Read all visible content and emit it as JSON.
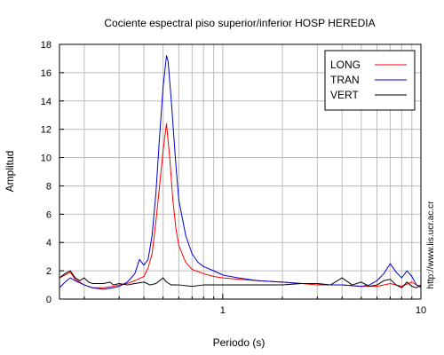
{
  "chart_data": {
    "type": "line",
    "title": "Cociente espectral piso superior/inferior  HOSP HEREDIA",
    "xlabel": "Periodo (s)",
    "ylabel": "Amplitud",
    "x_scale": "log",
    "xlim": [
      0.15,
      10
    ],
    "ylim": [
      0,
      18
    ],
    "x_ticks": [
      {
        "value": 1,
        "label": "1"
      },
      {
        "value": 10,
        "label": "10"
      }
    ],
    "y_ticks": [
      0,
      2,
      4,
      6,
      8,
      10,
      12,
      14,
      16,
      18
    ],
    "grid": true,
    "legend_position": "top-right",
    "side_note": "http://www.lis.ucr.ac.cr",
    "series": [
      {
        "name": "LONG",
        "color": "#ff0000",
        "points": [
          [
            0.15,
            1.5
          ],
          [
            0.16,
            1.7
          ],
          [
            0.17,
            1.9
          ],
          [
            0.18,
            1.4
          ],
          [
            0.2,
            1.0
          ],
          [
            0.22,
            0.8
          ],
          [
            0.25,
            0.8
          ],
          [
            0.28,
            0.9
          ],
          [
            0.3,
            1.0
          ],
          [
            0.33,
            1.1
          ],
          [
            0.36,
            1.3
          ],
          [
            0.4,
            1.6
          ],
          [
            0.42,
            2.2
          ],
          [
            0.44,
            3.2
          ],
          [
            0.46,
            5.5
          ],
          [
            0.48,
            8.0
          ],
          [
            0.5,
            10.5
          ],
          [
            0.52,
            12.4
          ],
          [
            0.54,
            10.0
          ],
          [
            0.56,
            7.0
          ],
          [
            0.58,
            5.0
          ],
          [
            0.6,
            3.8
          ],
          [
            0.65,
            2.6
          ],
          [
            0.7,
            2.1
          ],
          [
            0.8,
            1.8
          ],
          [
            0.9,
            1.6
          ],
          [
            1.0,
            1.5
          ],
          [
            1.2,
            1.4
          ],
          [
            1.5,
            1.3
          ],
          [
            2.0,
            1.2
          ],
          [
            2.5,
            1.1
          ],
          [
            3.0,
            1.0
          ],
          [
            4.0,
            1.0
          ],
          [
            5.0,
            0.9
          ],
          [
            6.0,
            0.9
          ],
          [
            7.0,
            1.1
          ],
          [
            8.0,
            0.9
          ],
          [
            9.0,
            1.2
          ],
          [
            10.0,
            0.8
          ]
        ]
      },
      {
        "name": "TRAN",
        "color": "#0000cc",
        "points": [
          [
            0.15,
            0.8
          ],
          [
            0.16,
            1.2
          ],
          [
            0.17,
            1.5
          ],
          [
            0.18,
            1.3
          ],
          [
            0.2,
            1.0
          ],
          [
            0.22,
            0.8
          ],
          [
            0.25,
            0.7
          ],
          [
            0.28,
            0.8
          ],
          [
            0.3,
            0.9
          ],
          [
            0.33,
            1.2
          ],
          [
            0.36,
            1.8
          ],
          [
            0.38,
            2.8
          ],
          [
            0.4,
            2.4
          ],
          [
            0.42,
            2.8
          ],
          [
            0.44,
            4.5
          ],
          [
            0.46,
            7.5
          ],
          [
            0.48,
            11.5
          ],
          [
            0.5,
            15.0
          ],
          [
            0.52,
            17.2
          ],
          [
            0.53,
            16.8
          ],
          [
            0.55,
            14.0
          ],
          [
            0.58,
            9.5
          ],
          [
            0.6,
            7.0
          ],
          [
            0.65,
            4.5
          ],
          [
            0.7,
            3.2
          ],
          [
            0.75,
            2.6
          ],
          [
            0.8,
            2.3
          ],
          [
            0.9,
            2.0
          ],
          [
            1.0,
            1.7
          ],
          [
            1.2,
            1.5
          ],
          [
            1.5,
            1.3
          ],
          [
            2.0,
            1.2
          ],
          [
            2.5,
            1.1
          ],
          [
            3.0,
            1.1
          ],
          [
            3.5,
            1.0
          ],
          [
            4.0,
            1.0
          ],
          [
            5.0,
            0.9
          ],
          [
            5.5,
            1.0
          ],
          [
            6.0,
            1.3
          ],
          [
            6.5,
            1.8
          ],
          [
            7.0,
            2.5
          ],
          [
            7.5,
            1.9
          ],
          [
            8.0,
            1.5
          ],
          [
            8.5,
            2.0
          ],
          [
            9.0,
            1.6
          ],
          [
            9.5,
            1.0
          ],
          [
            10.0,
            0.9
          ]
        ]
      },
      {
        "name": "VERT",
        "color": "#000000",
        "points": [
          [
            0.15,
            1.5
          ],
          [
            0.16,
            1.8
          ],
          [
            0.17,
            2.0
          ],
          [
            0.18,
            1.5
          ],
          [
            0.19,
            1.3
          ],
          [
            0.2,
            1.5
          ],
          [
            0.21,
            1.2
          ],
          [
            0.22,
            1.1
          ],
          [
            0.25,
            1.1
          ],
          [
            0.27,
            1.2
          ],
          [
            0.28,
            1.0
          ],
          [
            0.3,
            1.1
          ],
          [
            0.33,
            1.0
          ],
          [
            0.36,
            1.1
          ],
          [
            0.4,
            1.2
          ],
          [
            0.43,
            1.0
          ],
          [
            0.46,
            1.1
          ],
          [
            0.5,
            1.5
          ],
          [
            0.52,
            1.2
          ],
          [
            0.55,
            1.0
          ],
          [
            0.6,
            1.0
          ],
          [
            0.7,
            0.9
          ],
          [
            0.8,
            1.0
          ],
          [
            1.0,
            1.0
          ],
          [
            1.5,
            1.0
          ],
          [
            2.0,
            1.0
          ],
          [
            2.5,
            1.1
          ],
          [
            3.0,
            1.1
          ],
          [
            3.5,
            1.0
          ],
          [
            4.0,
            1.5
          ],
          [
            4.5,
            1.0
          ],
          [
            5.0,
            1.2
          ],
          [
            5.5,
            0.9
          ],
          [
            6.0,
            1.0
          ],
          [
            6.5,
            1.3
          ],
          [
            7.0,
            1.4
          ],
          [
            7.5,
            1.0
          ],
          [
            8.0,
            0.8
          ],
          [
            8.5,
            1.2
          ],
          [
            9.0,
            0.9
          ],
          [
            9.5,
            0.8
          ],
          [
            10.0,
            1.0
          ]
        ]
      }
    ]
  }
}
